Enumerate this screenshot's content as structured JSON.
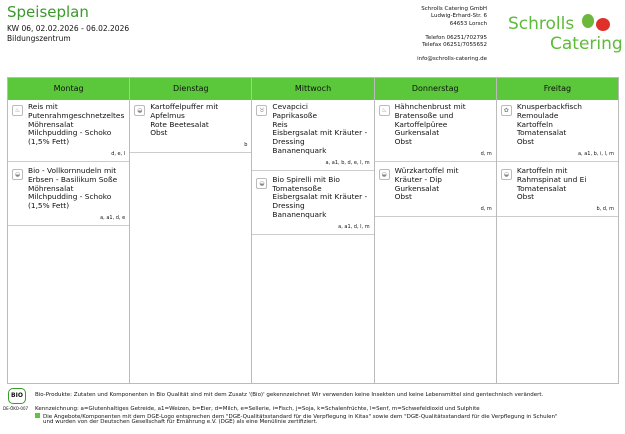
{
  "header": {
    "title": "Speiseplan",
    "week": "KW 06, 02.02.2026 - 06.02.2026",
    "location": "Bildungszentrum"
  },
  "company": {
    "name": "Schrolls Catering GmbH",
    "street": "Ludwig-Erhard-Str. 6",
    "city": "64653 Lorsch",
    "phone": "Telefon 06251/702795",
    "fax": "Telefax 06251/7055652",
    "email": "info@schrolls-catering.de",
    "logo_line1": "Schrolls",
    "logo_line2": "Catering"
  },
  "days": [
    {
      "name": "Montag",
      "meals": [
        {
          "icon": "poultry-icon",
          "lines": [
            "Reis mit",
            "Putenrahmgeschnetzeltes",
            "Möhrensalat",
            "Milchpudding - Schoko",
            "(1,5% Fett)"
          ],
          "allergens": "d, e, l"
        },
        {
          "icon": "vegetarian-icon",
          "lines": [
            "Bio  -  Vollkornnudeln mit",
            "Erbsen - Basilikum Soße",
            "Möhrensalat",
            "Milchpudding - Schoko",
            "(1,5% Fett)"
          ],
          "allergens": "a, a1, d, e"
        }
      ]
    },
    {
      "name": "Dienstag",
      "meals": [
        {
          "icon": "vegetarian-icon",
          "lines": [
            "Kartoffelpuffer mit",
            "Apfelmus",
            "Rote Beetesalat",
            "Obst"
          ],
          "allergens": "b"
        }
      ]
    },
    {
      "name": "Mittwoch",
      "meals": [
        {
          "icon": "beef-icon",
          "lines": [
            "Cevapcici",
            "Paprikasoße",
            "Reis",
            "Eisbergsalat mit Kräuter  -",
            "Dressing",
            "Bananenquark"
          ],
          "allergens": "a, a1, b, d, e, l, m"
        },
        {
          "icon": "vegetarian-icon",
          "lines": [
            "Bio Spirelli mit Bio",
            "Tomatensoße",
            "Eisbergsalat mit Kräuter  -",
            "Dressing",
            "Bananenquark"
          ],
          "allergens": "a, a1, d, l, m"
        }
      ]
    },
    {
      "name": "Donnerstag",
      "meals": [
        {
          "icon": "poultry-icon",
          "lines": [
            "Hähnchenbrust mit",
            "Bratensoße und",
            "Kartoffelpüree",
            "Gurkensalat",
            "Obst"
          ],
          "allergens": "d, m"
        },
        {
          "icon": "vegetarian-icon",
          "lines": [
            "Würzkartoffel mit",
            "Kräuter  -  Dip",
            "Gurkensalat",
            "Obst"
          ],
          "allergens": "d, m"
        }
      ]
    },
    {
      "name": "Freitag",
      "meals": [
        {
          "icon": "fish-dge-icon",
          "lines": [
            "Knusperbackfisch",
            "Remoulade",
            "Kartoffeln",
            "Tomatensalat",
            "Obst"
          ],
          "allergens": "a, a1, b, i, l, m"
        },
        {
          "icon": "vegetarian-icon",
          "lines": [
            "Kartoffeln mit",
            "Rahmspinat und Ei",
            "Tomatensalat",
            "Obst"
          ],
          "allergens": "b, d, m"
        }
      ]
    }
  ],
  "footer": {
    "bio_logo": "BIO",
    "bio_code": "DE-ÖKO-007",
    "bio_text": "Bio-Produkte: Zutaten und Komponenten in Bio Qualität sind mit dem Zusatz '(Bio)' gekennzeichnet Wir verwenden keine Insekten und keine Lebensmittel sind gentechnisch verändert.",
    "legend": "Kennzeichnung: a=Glutenhaltiges Getreide, a1=Weizen, b=Eier, d=Milch, e=Sellerie, i=Fisch, j=Soja, k=Schalenfrüchte, l=Senf, m=Schwefeldioxid und Sulphite",
    "dge1": "Die Angebote/Komponenten mit dem DGE-Logo entsprechen dem \"DGE-Qualitätsstandard für die Verpflegung in Kitas\" sowie dem \"DGE-Qualitätsstandard für die Verpflegung in Schulen\"",
    "dge2": "und wurden von der Deutschen Gesellschaft für Ernährung e.V. (DGE) als eine Menülinie zertifiziert."
  },
  "colors": {
    "header_green": "#5ac83a",
    "title_green": "#3a9a2a"
  }
}
